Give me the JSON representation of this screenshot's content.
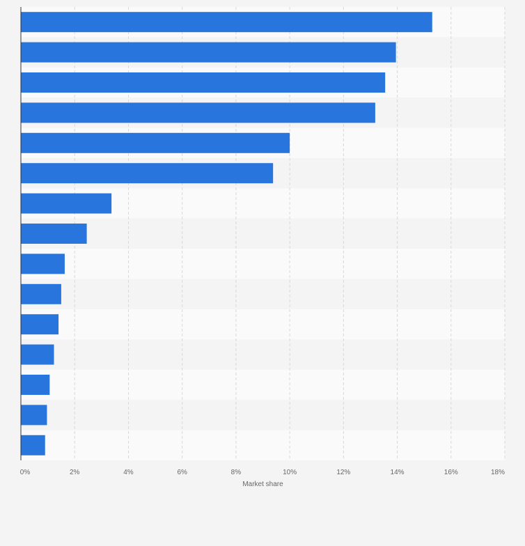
{
  "chart_data": {
    "type": "bar",
    "orientation": "horizontal",
    "title": "",
    "categories": [
      "",
      "",
      "",
      "",
      "",
      "",
      "",
      "",
      "",
      "",
      "",
      "",
      "",
      "",
      ""
    ],
    "values": [
      15.3,
      13.95,
      13.55,
      13.18,
      10.0,
      9.38,
      3.37,
      2.45,
      1.63,
      1.5,
      1.4,
      1.23,
      1.07,
      0.97,
      0.9
    ],
    "xlabel": "Market share",
    "ylabel": "",
    "xlim": [
      0,
      18
    ],
    "xticks": [
      0,
      2,
      4,
      6,
      8,
      10,
      12,
      14,
      16,
      18
    ],
    "xtick_labels": [
      "0%",
      "2%",
      "4%",
      "6%",
      "8%",
      "10%",
      "12%",
      "14%",
      "16%",
      "18%"
    ],
    "grid": true,
    "colors": {
      "bar": "#2876dd",
      "band_light": "#fafafa",
      "band_dark": "#f4f4f4",
      "grid": "#d8d8d8",
      "axis": "#333333",
      "tick_text": "#666666",
      "page_bg": "#f4f4f4"
    }
  }
}
